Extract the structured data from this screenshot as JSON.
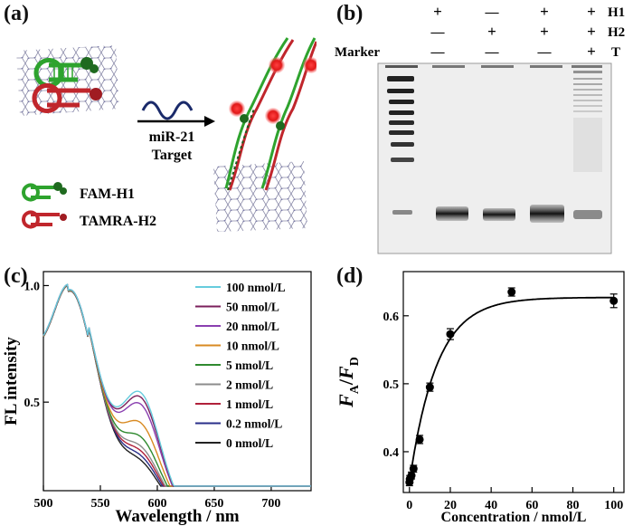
{
  "panels": {
    "a": {
      "label": "(a)",
      "arrow_text": [
        "miR-21",
        "Target"
      ],
      "legend": [
        {
          "text": "FAM-H1",
          "color": "#2ea32e"
        },
        {
          "text": "TAMRA-H2",
          "color": "#c0262c"
        }
      ]
    },
    "b": {
      "label": "(b)",
      "row_labels": [
        "H1",
        "H2",
        "T"
      ],
      "marker_label": "Marker",
      "lanes": [
        {
          "H1": "+",
          "H2": "—",
          "T": "—"
        },
        {
          "H1": "—",
          "H2": "+",
          "T": "—"
        },
        {
          "H1": "+",
          "H2": "+",
          "T": "—"
        },
        {
          "H1": "+",
          "H2": "+",
          "T": "+"
        }
      ]
    },
    "c": {
      "label": "(c)"
    },
    "d": {
      "label": "(d)"
    }
  },
  "colors": {
    "fam_green": "#2ea32e",
    "tamra_red": "#c0262c",
    "gel_bg": "#f2f2f2",
    "band": "#1a1a1a"
  },
  "chart_data": [
    {
      "id": "c",
      "type": "line",
      "xlabel": "Wavelength / nm",
      "ylabel": "FL intensity",
      "xlim": [
        500,
        735
      ],
      "ylim": [
        0.12,
        1.06
      ],
      "xticks": [
        500,
        550,
        600,
        650,
        700
      ],
      "yticks": [
        0.5,
        1.0
      ],
      "ytick_labels": [
        "0.5",
        "1.0"
      ],
      "legend_position": "top-right",
      "series": [
        {
          "name": "100 nmol/L",
          "color": "#66ccdd",
          "peak2": 0.63
        },
        {
          "name": "50 nmol/L",
          "color": "#7b1f5b",
          "peak2": 0.61
        },
        {
          "name": "20 nmol/L",
          "color": "#8a3fb0",
          "peak2": 0.58
        },
        {
          "name": "10 nmol/L",
          "color": "#d88a22",
          "peak2": 0.5
        },
        {
          "name": "5 nmol/L",
          "color": "#2f8a2f",
          "peak2": 0.44
        },
        {
          "name": "2 nmol/L",
          "color": "#8c8c8c",
          "peak2": 0.4
        },
        {
          "name": "1 nmol/L",
          "color": "#b0203a",
          "peak2": 0.38
        },
        {
          "name": "0.2 nmol/L",
          "color": "#2a2f8a",
          "peak2": 0.36
        },
        {
          "name": "0 nmol/L",
          "color": "#222222",
          "peak2": 0.34
        }
      ]
    },
    {
      "id": "d",
      "type": "scatter",
      "xlabel": "Concentration / nmol/L",
      "ylabel": "F_A/F_D",
      "xlim": [
        -3,
        105
      ],
      "ylim": [
        0.34,
        0.665
      ],
      "xticks": [
        0,
        20,
        40,
        60,
        80,
        100
      ],
      "yticks": [
        0.4,
        0.5,
        0.6
      ],
      "points": [
        {
          "x": 0,
          "y": 0.355,
          "err": 0.005
        },
        {
          "x": 0.2,
          "y": 0.36,
          "err": 0.005
        },
        {
          "x": 1,
          "y": 0.365,
          "err": 0.005
        },
        {
          "x": 2,
          "y": 0.375,
          "err": 0.005
        },
        {
          "x": 5,
          "y": 0.418,
          "err": 0.006
        },
        {
          "x": 10,
          "y": 0.495,
          "err": 0.006
        },
        {
          "x": 20,
          "y": 0.573,
          "err": 0.008
        },
        {
          "x": 50,
          "y": 0.635,
          "err": 0.006
        },
        {
          "x": 100,
          "y": 0.622,
          "err": 0.01
        }
      ],
      "fit": {
        "model": "exponential_rise",
        "y0": 0.355,
        "ymax": 0.627,
        "k": 0.075
      }
    }
  ]
}
